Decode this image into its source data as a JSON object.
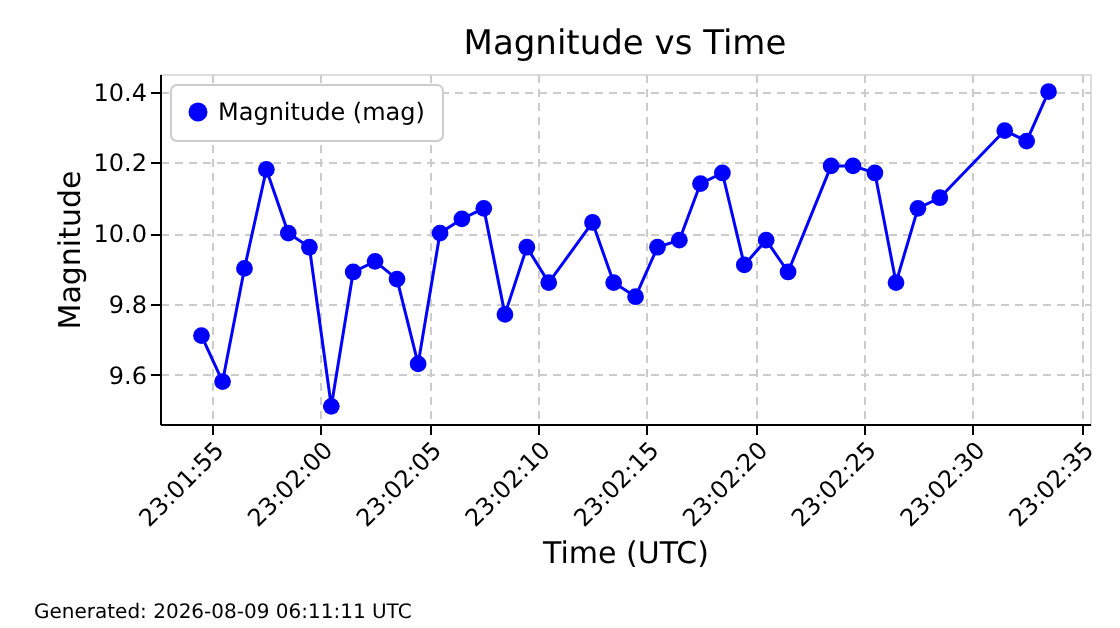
{
  "chart_data": {
    "type": "line",
    "title": "Magnitude vs Time",
    "xlabel": "Time (UTC)",
    "ylabel": "Magnitude",
    "annotations": [
      "Generated: 2026-08-09 06:11:11 UTC"
    ],
    "x": [
      23.03181,
      23.03208,
      23.03236,
      23.03264,
      23.03292,
      23.03319,
      23.03347,
      23.03375,
      23.03403,
      23.03431,
      23.03458,
      23.03486,
      23.03514,
      23.03542,
      23.03569,
      23.03597,
      23.03625,
      23.03681,
      23.03708,
      23.03736,
      23.03764,
      23.03792,
      23.03819,
      23.03847,
      23.03875,
      23.03903,
      23.03931,
      23.03986,
      23.04014,
      23.04042,
      23.04069,
      23.04097,
      23.04125,
      23.04208,
      23.04236,
      23.04264
    ],
    "series": [
      {
        "name": "Magnitude (mag)",
        "color": "#0000ff",
        "values": [
          9.71,
          9.58,
          9.9,
          10.18,
          10.0,
          9.96,
          9.51,
          9.89,
          9.92,
          9.87,
          9.63,
          10.0,
          10.04,
          10.07,
          9.77,
          9.96,
          9.86,
          10.03,
          9.86,
          9.82,
          9.96,
          9.98,
          10.14,
          10.17,
          9.91,
          9.98,
          9.89,
          10.19,
          10.19,
          10.17,
          9.86,
          10.07,
          10.1,
          10.29,
          10.26,
          10.4
        ]
      }
    ],
    "xlim": [
      23.03128,
      23.04317
    ],
    "xticks": [
      {
        "value": 23.03194,
        "label": "23:01:55"
      },
      {
        "value": 23.03333,
        "label": "23:02:00"
      },
      {
        "value": 23.03472,
        "label": "23:02:05"
      },
      {
        "value": 23.03611,
        "label": "23:02:10"
      },
      {
        "value": 23.0375,
        "label": "23:02:15"
      },
      {
        "value": 23.03889,
        "label": "23:02:20"
      },
      {
        "value": 23.04028,
        "label": "23:02:25"
      },
      {
        "value": 23.04167,
        "label": "23:02:30"
      },
      {
        "value": 23.04306,
        "label": "23:02:35"
      }
    ],
    "ylim": [
      9.46,
      10.45
    ],
    "yticks": [
      9.6,
      9.8,
      {
        "value": 10.0,
        "label": "10.0"
      },
      10.2,
      10.4
    ],
    "grid": true,
    "legend": "top left",
    "marker": "circle",
    "line_style": "solid"
  }
}
